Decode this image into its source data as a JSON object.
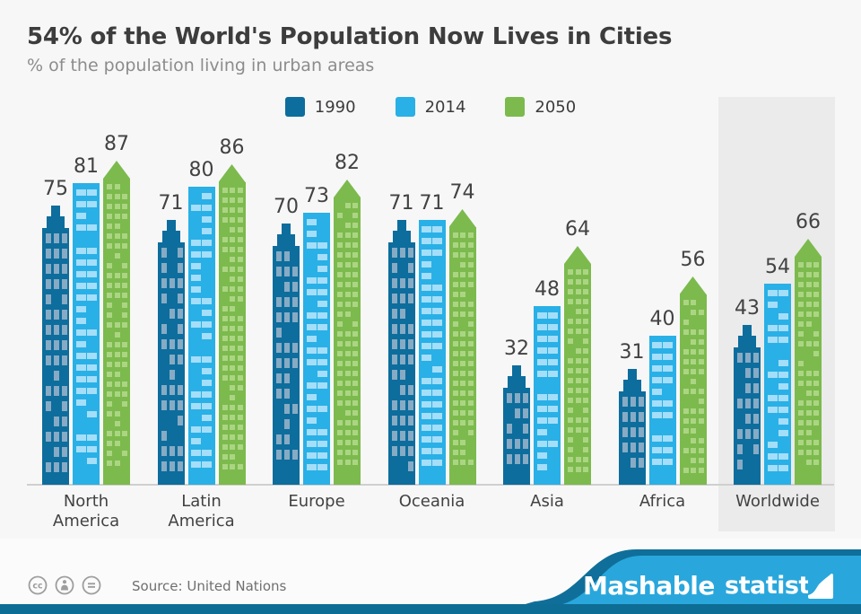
{
  "header": {
    "title": "54% of the World's Population Now Lives in Cities",
    "subtitle": "% of the population living in urban areas"
  },
  "chart_data": {
    "type": "bar",
    "bar_style": "building-pictogram",
    "title": "54% of the World's Population Now Lives in Cities",
    "subtitle": "% of the population living in urban areas",
    "ylabel": "% of population living in urban areas",
    "ylim": [
      0,
      100
    ],
    "grid": false,
    "legend_position": "top",
    "categories": [
      "North America",
      "Latin America",
      "Europe",
      "Oceania",
      "Asia",
      "Africa",
      "Worldwide"
    ],
    "series": [
      {
        "name": "1990",
        "color": "#0d6d9d",
        "window_color": "#87abc4",
        "values": [
          75,
          71,
          70,
          71,
          32,
          31,
          43
        ]
      },
      {
        "name": "2014",
        "color": "#29b0e6",
        "window_color": "#a5def8",
        "values": [
          81,
          80,
          73,
          71,
          48,
          40,
          54
        ]
      },
      {
        "name": "2050",
        "color": "#7cba4d",
        "window_color": "#abd583",
        "values": [
          87,
          86,
          82,
          74,
          64,
          56,
          66
        ]
      }
    ],
    "highlighted_category": "Worldwide"
  },
  "footer": {
    "source": "Source: United Nations",
    "brand_left": "Mashable",
    "brand_right": "statista",
    "cc_icons": [
      "cc-license-icon",
      "attribution-icon",
      "no-derivatives-icon"
    ]
  },
  "colors": {
    "background": "#f7f7f7",
    "highlight_panel": "#ebebeb",
    "baseline": "#cfcfcf",
    "footer_blue": "#29a7dc",
    "footer_dark_edge": "#0f6f9a",
    "bottom_strip": "#0e6d94",
    "icon_gray": "#9e9e9e"
  }
}
